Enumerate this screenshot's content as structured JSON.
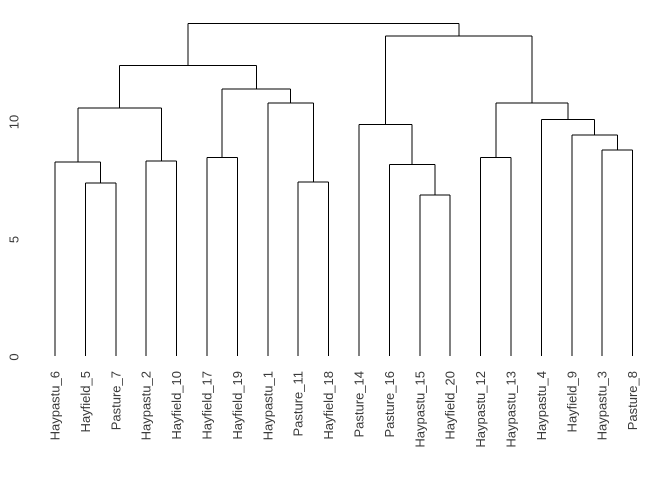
{
  "figure": {
    "background_color": "#ffffff",
    "line_color": "#000000",
    "text_color": "#3a3a3a"
  },
  "chart_data": {
    "type": "dendrogram",
    "orientation": "vertical",
    "title": "",
    "xlabel": "",
    "ylabel": "",
    "ylim": [
      0,
      14.2
    ],
    "y_axis_ticks": [
      0,
      5,
      10
    ],
    "grid": "off",
    "legend": "none",
    "leaf_order": [
      "Haypastu_6",
      "Hayfield_5",
      "Pasture_7",
      "Haypastu_2",
      "Hayfield_10",
      "Hayfield_17",
      "Hayfield_19",
      "Haypastu_1",
      "Pasture_11",
      "Hayfield_18",
      "Pasture_14",
      "Pasture_16",
      "Haypastu_15",
      "Hayfield_20",
      "Haypastu_12",
      "Haypastu_13",
      "Haypastu_4",
      "Hayfield_9",
      "Haypastu_3",
      "Pasture_8"
    ],
    "tree": {
      "height": 14.2,
      "children": [
        {
          "height": 12.4,
          "children": [
            {
              "height": 10.6,
              "children": [
                {
                  "height": 8.3,
                  "children": [
                    {
                      "leaf": "Haypastu_6"
                    },
                    {
                      "height": 7.4,
                      "children": [
                        {
                          "leaf": "Hayfield_5"
                        },
                        {
                          "leaf": "Pasture_7"
                        }
                      ]
                    }
                  ]
                },
                {
                  "height": 8.35,
                  "children": [
                    {
                      "leaf": "Haypastu_2"
                    },
                    {
                      "leaf": "Hayfield_10"
                    }
                  ]
                }
              ]
            },
            {
              "height": 11.4,
              "children": [
                {
                  "height": 8.5,
                  "children": [
                    {
                      "leaf": "Hayfield_17"
                    },
                    {
                      "leaf": "Hayfield_19"
                    }
                  ]
                },
                {
                  "height": 10.8,
                  "children": [
                    {
                      "leaf": "Haypastu_1"
                    },
                    {
                      "height": 7.45,
                      "children": [
                        {
                          "leaf": "Pasture_11"
                        },
                        {
                          "leaf": "Hayfield_18"
                        }
                      ]
                    }
                  ]
                }
              ]
            }
          ]
        },
        {
          "height": 13.65,
          "children": [
            {
              "height": 9.9,
              "children": [
                {
                  "leaf": "Pasture_14"
                },
                {
                  "height": 8.2,
                  "children": [
                    {
                      "leaf": "Pasture_16"
                    },
                    {
                      "height": 6.9,
                      "children": [
                        {
                          "leaf": "Haypastu_15"
                        },
                        {
                          "leaf": "Hayfield_20"
                        }
                      ]
                    }
                  ]
                }
              ]
            },
            {
              "height": 10.8,
              "children": [
                {
                  "height": 8.5,
                  "children": [
                    {
                      "leaf": "Haypastu_12"
                    },
                    {
                      "leaf": "Haypastu_13"
                    }
                  ]
                },
                {
                  "height": 10.1,
                  "children": [
                    {
                      "leaf": "Haypastu_4"
                    },
                    {
                      "height": 9.45,
                      "children": [
                        {
                          "leaf": "Hayfield_9"
                        },
                        {
                          "height": 8.8,
                          "children": [
                            {
                              "leaf": "Haypastu_3"
                            },
                            {
                              "leaf": "Pasture_8"
                            }
                          ]
                        }
                      ]
                    }
                  ]
                }
              ]
            }
          ]
        }
      ]
    }
  }
}
